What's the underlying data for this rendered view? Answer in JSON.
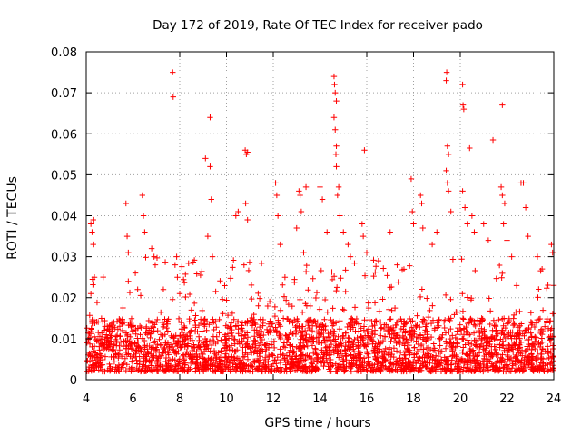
{
  "chart_data": {
    "type": "scatter",
    "title": "Day 172 of 2019, Rate Of TEC Index for receiver pado",
    "xlabel": "GPS time / hours",
    "ylabel": "ROTI / TECUs",
    "xlim": [
      4,
      24
    ],
    "ylim": [
      0,
      0.08
    ],
    "xticks": [
      4,
      6,
      8,
      10,
      12,
      14,
      16,
      18,
      20,
      22,
      24
    ],
    "xtick_labels": [
      "4",
      "6",
      "8",
      "10",
      "12",
      "14",
      "16",
      "18",
      "20",
      "22",
      "24"
    ],
    "yticks": [
      0,
      0.01,
      0.02,
      0.03,
      0.04,
      0.05,
      0.06,
      0.07,
      0.08
    ],
    "ytick_labels": [
      "0",
      "0.01",
      "0.02",
      "0.03",
      "0.04",
      "0.05",
      "0.06",
      "0.07",
      "0.08"
    ],
    "grid": true,
    "marker": "+",
    "color": "#ff0000",
    "series": [
      {
        "name": "ROTI",
        "points": [
          [
            4.2,
            0.038
          ],
          [
            4.25,
            0.036
          ],
          [
            4.3,
            0.039
          ],
          [
            4.3,
            0.033
          ],
          [
            4.35,
            0.025
          ],
          [
            4.2,
            0.021
          ],
          [
            5.7,
            0.043
          ],
          [
            5.75,
            0.035
          ],
          [
            5.8,
            0.031
          ],
          [
            5.8,
            0.024
          ],
          [
            6.4,
            0.045
          ],
          [
            6.45,
            0.04
          ],
          [
            6.5,
            0.036
          ],
          [
            6.1,
            0.026
          ],
          [
            6.2,
            0.022
          ],
          [
            6.8,
            0.032
          ],
          [
            6.9,
            0.03
          ],
          [
            6.95,
            0.028
          ],
          [
            7.3,
            0.022
          ],
          [
            7.7,
            0.075
          ],
          [
            7.72,
            0.069
          ],
          [
            7.8,
            0.028
          ],
          [
            7.9,
            0.025
          ],
          [
            8.0,
            0.021
          ],
          [
            9.1,
            0.054
          ],
          [
            9.3,
            0.052
          ],
          [
            9.35,
            0.044
          ],
          [
            9.3,
            0.064
          ],
          [
            9.2,
            0.035
          ],
          [
            9.4,
            0.03
          ],
          [
            10.4,
            0.04
          ],
          [
            10.5,
            0.041
          ],
          [
            10.8,
            0.056
          ],
          [
            10.85,
            0.055
          ],
          [
            10.9,
            0.0555
          ],
          [
            10.82,
            0.043
          ],
          [
            10.9,
            0.039
          ],
          [
            10.75,
            0.028
          ],
          [
            12.1,
            0.048
          ],
          [
            12.15,
            0.045
          ],
          [
            12.2,
            0.04
          ],
          [
            12.3,
            0.033
          ],
          [
            12.5,
            0.025
          ],
          [
            13.1,
            0.046
          ],
          [
            13.15,
            0.045
          ],
          [
            13.2,
            0.041
          ],
          [
            13.0,
            0.037
          ],
          [
            13.4,
            0.047
          ],
          [
            13.3,
            0.031
          ],
          [
            14.0,
            0.047
          ],
          [
            14.1,
            0.044
          ],
          [
            14.3,
            0.036
          ],
          [
            14.6,
            0.074
          ],
          [
            14.62,
            0.072
          ],
          [
            14.65,
            0.07
          ],
          [
            14.7,
            0.068
          ],
          [
            14.6,
            0.064
          ],
          [
            14.65,
            0.061
          ],
          [
            14.7,
            0.057
          ],
          [
            14.68,
            0.055
          ],
          [
            14.7,
            0.052
          ],
          [
            14.8,
            0.047
          ],
          [
            14.75,
            0.045
          ],
          [
            14.85,
            0.04
          ],
          [
            15.0,
            0.036
          ],
          [
            15.2,
            0.033
          ],
          [
            15.3,
            0.03
          ],
          [
            15.9,
            0.056
          ],
          [
            15.8,
            0.038
          ],
          [
            15.85,
            0.035
          ],
          [
            16.0,
            0.031
          ],
          [
            16.5,
            0.029
          ],
          [
            17.0,
            0.036
          ],
          [
            17.3,
            0.028
          ],
          [
            17.9,
            0.049
          ],
          [
            17.95,
            0.041
          ],
          [
            18.0,
            0.038
          ],
          [
            18.3,
            0.045
          ],
          [
            18.35,
            0.043
          ],
          [
            18.4,
            0.037
          ],
          [
            18.8,
            0.033
          ],
          [
            19.0,
            0.036
          ],
          [
            19.4,
            0.073
          ],
          [
            19.42,
            0.075
          ],
          [
            19.45,
            0.057
          ],
          [
            19.5,
            0.055
          ],
          [
            19.4,
            0.051
          ],
          [
            19.45,
            0.048
          ],
          [
            19.5,
            0.046
          ],
          [
            19.6,
            0.041
          ],
          [
            20.1,
            0.072
          ],
          [
            20.12,
            0.067
          ],
          [
            20.15,
            0.066
          ],
          [
            20.1,
            0.046
          ],
          [
            20.2,
            0.042
          ],
          [
            20.3,
            0.038
          ],
          [
            20.4,
            0.0565
          ],
          [
            20.5,
            0.04
          ],
          [
            20.6,
            0.036
          ],
          [
            21.0,
            0.038
          ],
          [
            21.2,
            0.034
          ],
          [
            21.4,
            0.0585
          ],
          [
            21.8,
            0.067
          ],
          [
            21.75,
            0.047
          ],
          [
            21.8,
            0.045
          ],
          [
            21.9,
            0.043
          ],
          [
            21.85,
            0.038
          ],
          [
            22.0,
            0.034
          ],
          [
            22.2,
            0.03
          ],
          [
            22.6,
            0.048
          ],
          [
            22.7,
            0.048
          ],
          [
            22.8,
            0.042
          ],
          [
            22.9,
            0.035
          ],
          [
            23.3,
            0.03
          ],
          [
            23.5,
            0.027
          ],
          [
            23.9,
            0.033
          ],
          [
            23.95,
            0.031
          ],
          [
            24.0,
            0.023
          ]
        ]
      }
    ],
    "background_band": {
      "description": "dense cloud of ROTI values mostly between 0.002 and 0.02 across 4–24 h",
      "y_typical_min": 0.002,
      "y_typical_max": 0.015,
      "y_spike_max": 0.03,
      "point_count": 2600,
      "seed": 172
    }
  }
}
